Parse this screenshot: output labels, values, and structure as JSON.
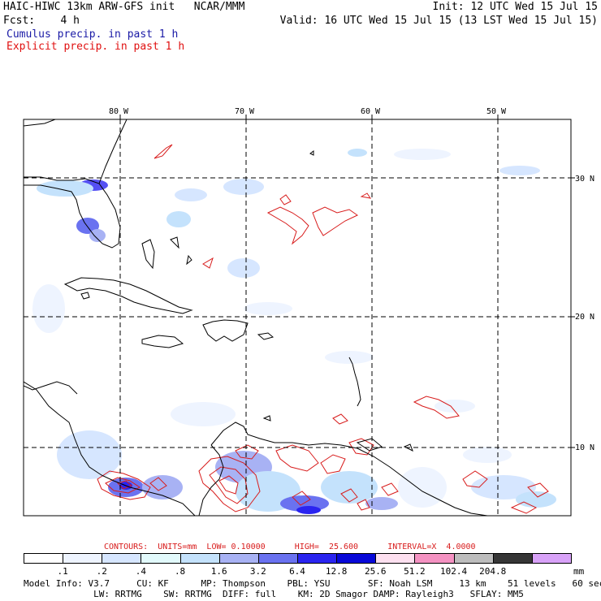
{
  "header": {
    "left_line1": "HAIC-HIWC 13km ARW-GFS init   NCAR/MMM",
    "left_line2": "Fcst:    4 h",
    "right_line1": "Init: 12 UTC Wed 15 Jul 15",
    "right_line2": "Valid: 16 UTC Wed 15 Jul 15 (13 LST Wed 15 Jul 15)",
    "legend_cumulus": "Cumulus precip. in past 1 h",
    "legend_explicit": "Explicit precip. in past 1 h",
    "cumulus_color": "#1a1aa6",
    "explicit_color": "#e01010"
  },
  "map": {
    "lon_labels": [
      "80 W",
      "70 W",
      "60 W",
      "50 W"
    ],
    "lat_labels": [
      "30 N",
      "20 N",
      "10 N"
    ],
    "grid_color": "#000000",
    "coast_color": "#000000",
    "contour_color": "#d81c1c"
  },
  "contours_info": {
    "label": "CONTOURS:  UNITS=mm  LOW= 0.10000      HIGH=  25.600      INTERVAL=X  4.0000"
  },
  "colorbar": {
    "unit": "mm",
    "labels": [
      ".1",
      ".2",
      ".4",
      ".8",
      "1.6",
      "3.2",
      "6.4",
      "12.8",
      "25.6",
      "51.2",
      "102.4",
      "204.8"
    ],
    "colors": [
      "#ffffff",
      "#eef4ff",
      "#d6e6ff",
      "#e2fafc",
      "#c4e2fc",
      "#a8b2f4",
      "#6a72f0",
      "#2a24f0",
      "#0808d8",
      "#fde0f0",
      "#f492c2",
      "#bdbdbd",
      "#363636",
      "#d8a2f8"
    ]
  },
  "footer": {
    "line1": "Model Info: V3.7     CU: KF      MP: Thompson    PBL: YSU       SF: Noah LSM     13 km    51 levels   60 sec",
    "line2": "             LW: RRTMG    SW: RRTMG  DIFF: full    KM: 2D Smagor DAMP: Rayleigh3   SFLAY: MM5"
  }
}
